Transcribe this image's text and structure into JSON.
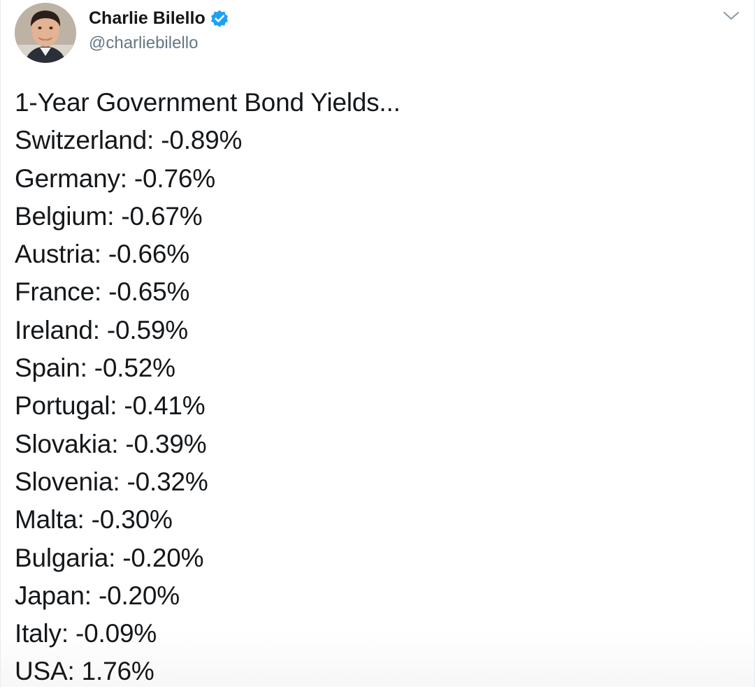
{
  "author": {
    "name": "Charlie Bilello",
    "handle": "@charliebilello",
    "verified_icon": "verified-badge-icon",
    "verified_color": "#1da1f2"
  },
  "menu_icon": "chevron-down-icon",
  "tweet": {
    "lines": [
      "1-Year Government Bond Yields...",
      "Switzerland: -0.89%",
      "Germany: -0.76%",
      "Belgium: -0.67%",
      "Austria: -0.66%",
      "France: -0.65%",
      "Ireland: -0.59%",
      "Spain: -0.52%",
      "Portugal: -0.41%",
      "Slovakia: -0.39%",
      "Slovenia: -0.32%",
      "Malta: -0.30%",
      "Bulgaria: -0.20%",
      "Japan: -0.20%",
      "Italy: -0.09%",
      "USA: 1.76%"
    ]
  },
  "colors": {
    "text": "#14171a",
    "secondary_text": "#657786",
    "accent": "#1da1f2"
  }
}
